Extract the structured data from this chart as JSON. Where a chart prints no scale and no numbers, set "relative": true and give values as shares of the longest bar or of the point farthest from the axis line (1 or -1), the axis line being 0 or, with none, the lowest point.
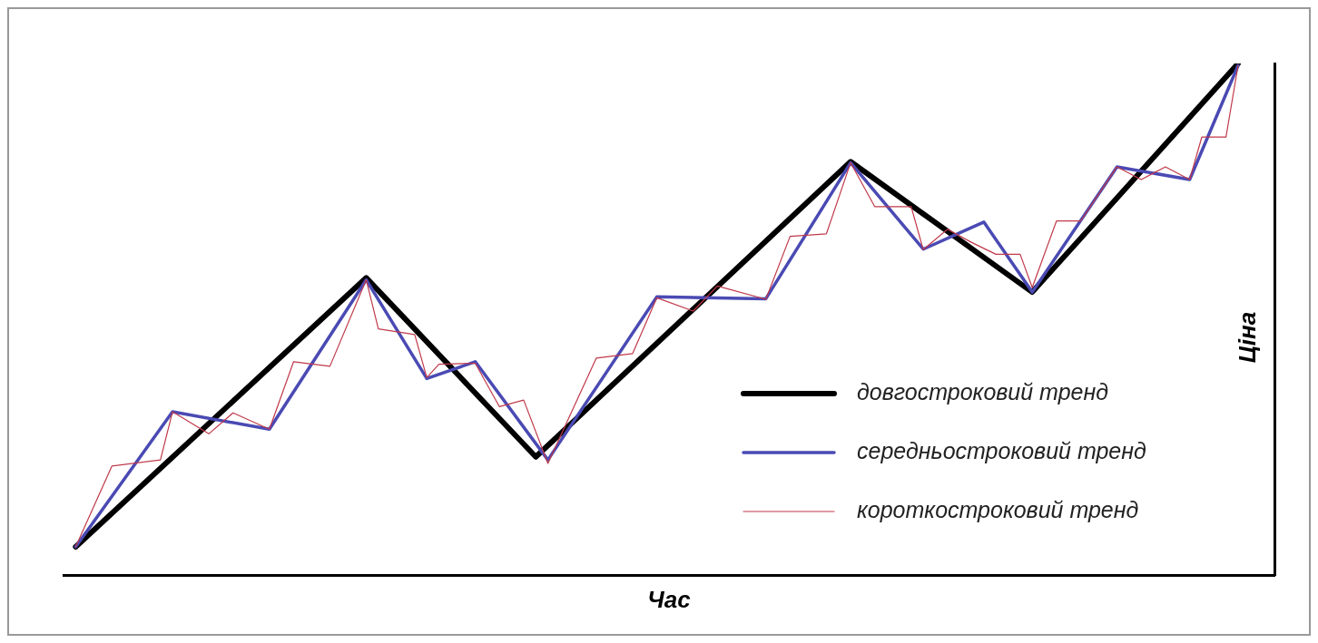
{
  "chart_data": {
    "type": "line",
    "relative": true,
    "xlabel": "Час",
    "ylabel": "Ціна",
    "tick_labels": false,
    "grid": false,
    "legend": "bottom right",
    "marker": "none",
    "line_style": "solid",
    "categories": [
      null,
      null,
      null,
      null,
      null,
      null,
      null,
      null,
      null,
      null,
      null,
      null,
      null,
      null,
      null,
      null,
      null,
      null,
      null,
      null,
      null,
      null,
      null,
      null,
      null,
      null,
      null,
      null,
      null,
      null,
      null,
      null,
      null,
      null,
      null,
      null,
      null,
      null,
      null,
      null,
      null,
      null,
      null,
      null,
      null,
      null,
      null,
      null,
      null,
      null,
      null,
      null,
      null,
      null,
      null,
      null,
      null,
      null,
      null,
      null,
      null,
      null,
      null,
      null,
      null,
      null,
      null,
      null,
      null,
      null,
      null,
      null,
      null,
      null,
      null,
      null,
      null,
      null,
      null,
      null,
      null,
      null,
      null,
      null,
      null,
      null,
      null,
      null,
      null,
      null,
      null,
      null,
      null,
      null,
      null,
      null,
      null,
      null,
      null,
      null,
      null
    ],
    "series": [
      {
        "name": "довгостроковий тренд",
        "color": "#000000",
        "values": [
          null,
          0.055,
          null,
          null,
          null,
          null,
          null,
          null,
          null,
          null,
          null,
          null,
          null,
          null,
          null,
          null,
          null,
          null,
          null,
          null,
          null,
          null,
          null,
          null,
          null,
          0.581,
          null,
          null,
          null,
          null,
          null,
          null,
          null,
          null,
          null,
          null,
          null,
          null,
          null,
          0.231,
          null,
          null,
          null,
          null,
          null,
          null,
          null,
          null,
          null,
          null,
          null,
          null,
          null,
          null,
          null,
          null,
          null,
          null,
          null,
          null,
          null,
          null,
          null,
          null,
          null,
          0.808,
          null,
          null,
          null,
          null,
          null,
          null,
          null,
          null,
          null,
          null,
          null,
          null,
          null,
          null,
          0.553,
          null,
          null,
          null,
          null,
          null,
          null,
          null,
          null,
          null,
          null,
          null,
          null,
          null,
          null,
          null,
          null,
          1.0,
          null,
          null,
          null
        ]
      },
      {
        "name": "середньостроковий тренд",
        "color": "#4a4ab4",
        "values": [
          null,
          0.055,
          null,
          null,
          null,
          null,
          null,
          null,
          null,
          0.319,
          null,
          null,
          null,
          null,
          null,
          null,
          null,
          0.285,
          null,
          null,
          null,
          null,
          null,
          null,
          null,
          0.577,
          null,
          null,
          null,
          null,
          0.384,
          null,
          null,
          null,
          0.417,
          null,
          null,
          null,
          null,
          null,
          0.225,
          null,
          null,
          null,
          null,
          null,
          null,
          null,
          null,
          0.544,
          null,
          null,
          null,
          null,
          null,
          null,
          null,
          null,
          0.54,
          null,
          null,
          null,
          null,
          null,
          null,
          0.806,
          null,
          null,
          null,
          null,
          null,
          0.637,
          null,
          null,
          null,
          null,
          0.69,
          null,
          null,
          null,
          0.553,
          null,
          null,
          null,
          null,
          null,
          null,
          0.798,
          null,
          null,
          null,
          null,
          null,
          0.773,
          null,
          null,
          null,
          0.996,
          null,
          null,
          null
        ]
      },
      {
        "name": "короткостроковий тренд",
        "color": "#c0394a",
        "values": [
          null,
          0.055,
          null,
          null,
          0.213,
          null,
          null,
          null,
          0.225,
          0.319,
          null,
          null,
          0.276,
          null,
          0.317,
          null,
          null,
          0.285,
          null,
          0.417,
          null,
          null,
          0.408,
          null,
          null,
          0.577,
          0.481,
          null,
          null,
          0.47,
          0.386,
          0.412,
          null,
          null,
          0.414,
          null,
          0.329,
          null,
          0.342,
          null,
          0.218,
          null,
          null,
          null,
          0.424,
          null,
          null,
          0.433,
          null,
          0.542,
          null,
          null,
          0.516,
          null,
          0.565,
          null,
          null,
          null,
          0.539,
          null,
          0.662,
          null,
          null,
          0.667,
          null,
          0.806,
          null,
          0.72,
          null,
          null,
          0.72,
          0.636,
          null,
          0.676,
          null,
          0.65,
          null,
          0.627,
          null,
          0.627,
          0.562,
          null,
          0.692,
          null,
          0.692,
          null,
          null,
          0.798,
          null,
          0.773,
          null,
          0.798,
          null,
          0.773,
          0.856,
          null,
          0.856,
          0.996,
          null,
          null,
          null
        ]
      }
    ]
  }
}
